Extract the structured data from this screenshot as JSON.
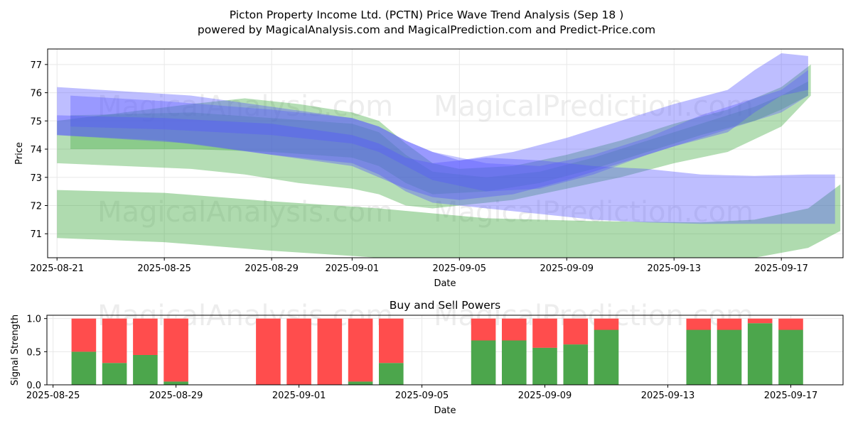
{
  "title_line1": "Picton Property Income Ltd. (PCTN) Price Wave Trend Analysis (Sep 18 )",
  "title_line2": "powered by MagicalAnalysis.com and MagicalPrediction.com and Predict-Price.com",
  "watermarks": [
    "MagicalAnalysis.com",
    "MagicalPrediction.com"
  ],
  "colors": {
    "green": "#2ca02c",
    "blue": "#5555ff",
    "buy": "#4ca64c",
    "sell": "#ff4d4d",
    "grid": "#e8e8e8"
  },
  "chart_data": [
    {
      "type": "area",
      "title": "",
      "xlabel": "Date",
      "ylabel": "Price",
      "xlim_days": [
        -0.35,
        29.3
      ],
      "ylim": [
        70.15,
        77.55
      ],
      "x_ticks": [
        {
          "day": 0,
          "label": "2025-08-21"
        },
        {
          "day": 4,
          "label": "2025-08-25"
        },
        {
          "day": 8,
          "label": "2025-08-29"
        },
        {
          "day": 11,
          "label": "2025-09-01"
        },
        {
          "day": 15,
          "label": "2025-09-05"
        },
        {
          "day": 19,
          "label": "2025-09-09"
        },
        {
          "day": 23,
          "label": "2025-09-13"
        },
        {
          "day": 27,
          "label": "2025-09-17"
        }
      ],
      "y_ticks": [
        71,
        72,
        73,
        74,
        75,
        76,
        77
      ],
      "series": [
        {
          "name": "green-upper-band",
          "color": "green",
          "opacity": 0.35,
          "x": [
            0,
            5,
            7,
            9,
            11,
            12,
            13,
            14,
            15,
            17,
            19,
            21,
            23,
            25,
            27,
            28.1
          ],
          "upper": [
            75.0,
            75.6,
            75.8,
            75.6,
            75.3,
            75.0,
            74.2,
            73.5,
            73.3,
            73.4,
            73.8,
            74.3,
            74.9,
            75.4,
            76.2,
            77.0
          ],
          "lower": [
            73.5,
            73.3,
            73.1,
            72.8,
            72.6,
            72.4,
            72.0,
            71.9,
            72.0,
            72.2,
            72.6,
            73.0,
            73.5,
            73.9,
            74.8,
            75.9
          ]
        },
        {
          "name": "green-mid-band",
          "color": "green",
          "opacity": 0.3,
          "x": [
            0.5,
            5,
            8,
            11,
            12,
            13,
            14,
            16,
            18,
            20,
            22,
            24,
            26,
            27,
            28
          ],
          "upper": [
            75.2,
            75.3,
            75.1,
            74.9,
            74.6,
            73.8,
            73.2,
            73.0,
            73.2,
            73.7,
            74.3,
            74.9,
            75.5,
            75.9,
            76.4
          ],
          "lower": [
            74.0,
            74.0,
            73.9,
            73.7,
            73.4,
            72.8,
            72.4,
            72.5,
            72.8,
            73.3,
            73.9,
            74.5,
            75.0,
            75.4,
            75.9
          ]
        },
        {
          "name": "green-lower-band",
          "color": "green",
          "opacity": 0.38,
          "x": [
            0,
            4,
            8,
            12,
            16,
            20,
            24,
            26,
            28,
            29.2
          ],
          "upper": [
            72.55,
            72.45,
            72.15,
            71.9,
            71.55,
            71.45,
            71.4,
            71.5,
            71.9,
            72.75
          ],
          "lower": [
            70.85,
            70.7,
            70.4,
            70.15,
            70.15,
            70.15,
            70.15,
            70.15,
            70.5,
            71.1
          ]
        },
        {
          "name": "blue-upper-band",
          "color": "blue",
          "opacity": 0.38,
          "x": [
            0,
            5,
            8,
            11,
            12,
            13,
            14,
            15,
            17,
            19,
            21,
            23,
            25,
            26,
            27,
            28
          ],
          "upper": [
            76.2,
            75.9,
            75.5,
            75.1,
            74.8,
            74.3,
            73.9,
            73.6,
            73.9,
            74.4,
            75.0,
            75.6,
            76.1,
            76.8,
            77.4,
            77.3
          ],
          "lower": [
            74.5,
            74.2,
            73.8,
            73.4,
            73.0,
            72.6,
            72.3,
            72.2,
            72.4,
            72.9,
            73.5,
            74.1,
            74.6,
            75.3,
            75.9,
            76.1
          ]
        },
        {
          "name": "blue-mid-band",
          "color": "blue",
          "opacity": 0.35,
          "x": [
            0.5,
            4,
            8,
            11,
            12,
            13,
            14,
            16,
            18,
            20,
            22,
            24,
            26,
            27,
            28
          ],
          "upper": [
            75.9,
            75.7,
            75.4,
            75.1,
            74.8,
            74.3,
            73.9,
            73.5,
            73.4,
            73.8,
            74.4,
            75.2,
            75.8,
            76.1,
            76.8
          ],
          "lower": [
            74.8,
            74.7,
            74.5,
            74.2,
            73.9,
            73.4,
            72.9,
            72.5,
            72.6,
            73.1,
            73.8,
            74.4,
            75.0,
            75.3,
            75.9
          ]
        },
        {
          "name": "blue-lower-band",
          "color": "blue",
          "opacity": 0.38,
          "x": [
            0,
            4,
            8,
            11,
            12,
            13,
            14,
            16,
            18,
            20,
            22,
            24,
            26,
            28,
            29.0
          ],
          "upper": [
            75.2,
            75.1,
            74.9,
            74.5,
            74.2,
            73.7,
            73.5,
            73.7,
            73.6,
            73.4,
            73.3,
            73.1,
            73.05,
            73.1,
            73.1
          ],
          "lower": [
            74.5,
            74.3,
            73.8,
            73.5,
            73.1,
            72.5,
            72.1,
            71.9,
            71.7,
            71.5,
            71.4,
            71.35,
            71.35,
            71.35,
            71.35
          ]
        }
      ]
    },
    {
      "type": "bar",
      "title": "Buy and Sell Powers",
      "xlabel": "Date",
      "ylabel": "Signal Strength",
      "xlim_days": [
        -0.2,
        25.7
      ],
      "ylim": [
        0,
        1.05
      ],
      "x_ticks": [
        {
          "day": 0,
          "label": "2025-08-25"
        },
        {
          "day": 4,
          "label": "2025-08-29"
        },
        {
          "day": 8,
          "label": "2025-09-01"
        },
        {
          "day": 12,
          "label": "2025-09-05"
        },
        {
          "day": 16,
          "label": "2025-09-09"
        },
        {
          "day": 20,
          "label": "2025-09-13"
        },
        {
          "day": 24,
          "label": "2025-09-17"
        }
      ],
      "y_ticks": [
        0.0,
        0.5,
        1.0
      ],
      "y_tick_labels": [
        "0.0",
        "0.5",
        "1.0"
      ],
      "days": [
        1,
        2,
        3,
        4,
        7,
        8,
        9,
        10,
        11,
        14,
        15,
        16,
        17,
        18,
        21,
        22,
        23,
        24
      ],
      "buy": [
        0.5,
        0.33,
        0.45,
        0.05,
        0.0,
        0.0,
        0.0,
        0.05,
        0.33,
        0.67,
        0.67,
        0.56,
        0.61,
        0.83,
        0.83,
        0.83,
        0.93,
        0.83
      ],
      "sell": [
        0.5,
        0.67,
        0.55,
        0.95,
        1.0,
        1.0,
        1.0,
        0.95,
        0.67,
        0.33,
        0.33,
        0.44,
        0.39,
        0.17,
        0.17,
        0.17,
        0.07,
        0.17
      ]
    }
  ]
}
